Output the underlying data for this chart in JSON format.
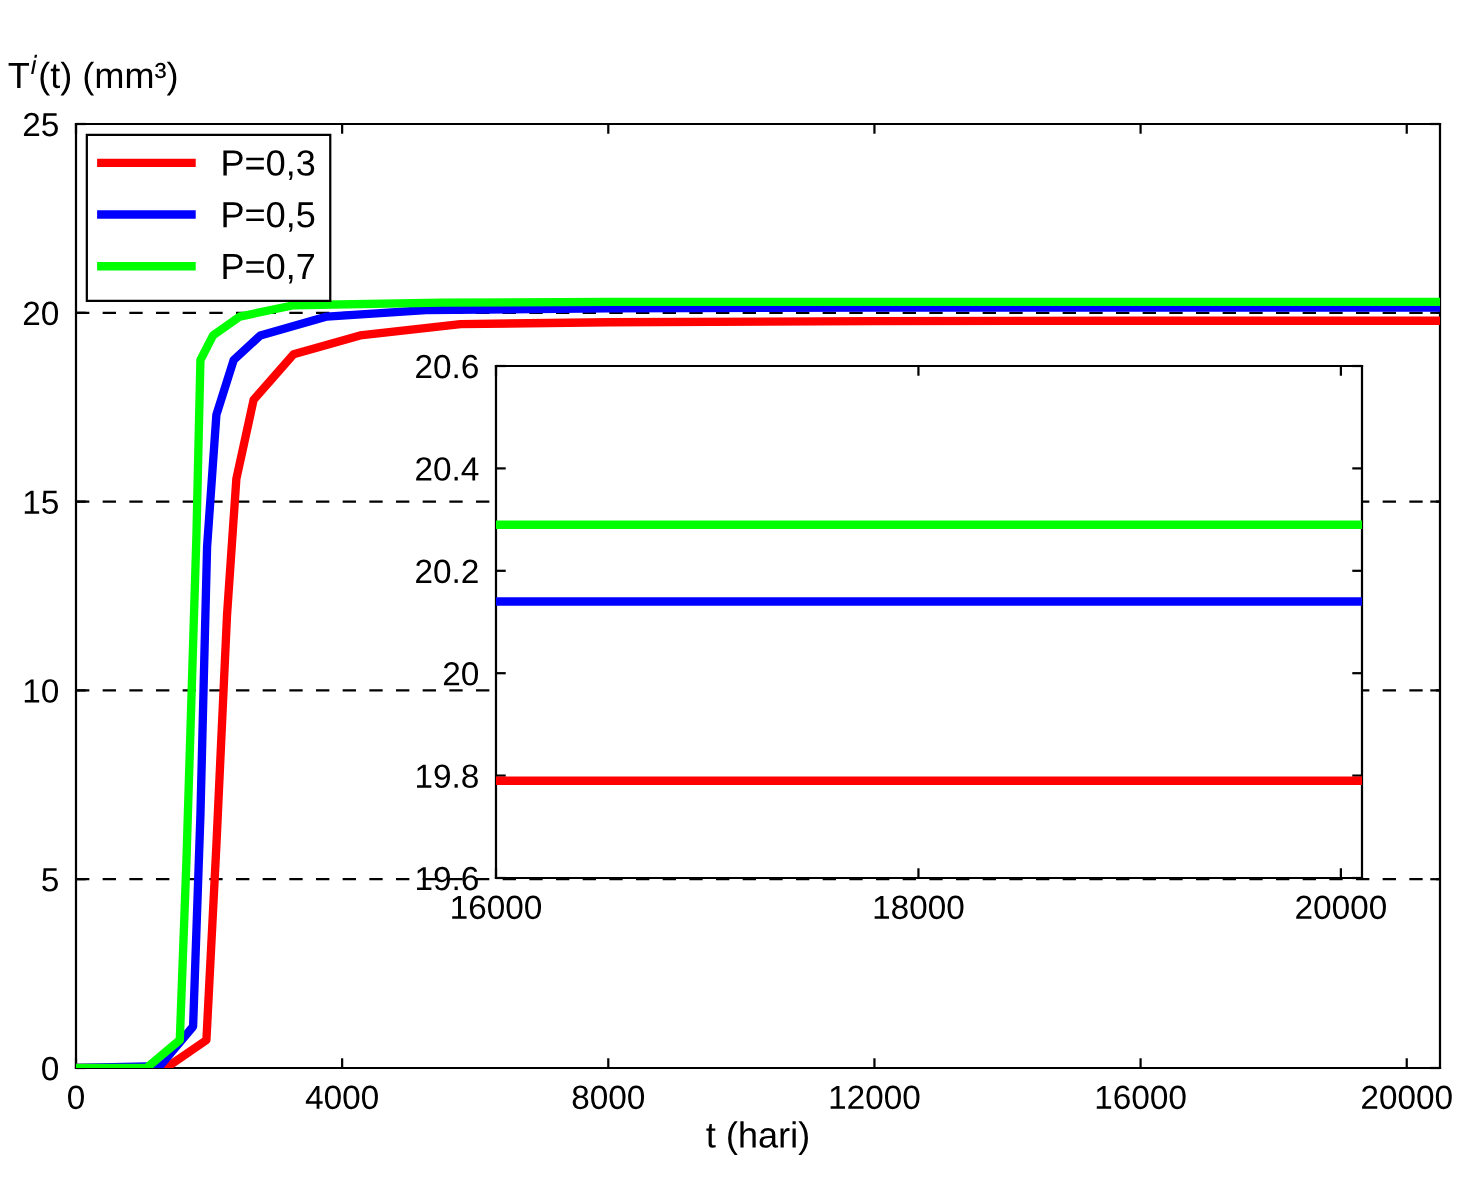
{
  "chart_data": [
    {
      "type": "line",
      "xlabel": "t (hari)",
      "ylabel": "T$^{i}$(t) (mm³)",
      "xlim": [
        0,
        20500
      ],
      "ylim": [
        0,
        25
      ],
      "xticks": [
        0,
        4000,
        8000,
        12000,
        16000,
        20000
      ],
      "yticks": [
        0,
        5,
        10,
        15,
        20,
        25
      ],
      "grid": "y",
      "legend": "top left",
      "series": [
        {
          "name": "P=0,3",
          "color": "#ff0000",
          "x": [
            0,
            1350,
            1960,
            2110,
            2270,
            2410,
            2670,
            3270,
            4270,
            5780,
            8000,
            12000,
            16000,
            20500
          ],
          "values": [
            0,
            0,
            0.74,
            5.9,
            12.0,
            15.6,
            17.7,
            18.9,
            19.4,
            19.7,
            19.75,
            19.78,
            19.79,
            19.79
          ]
        },
        {
          "name": "P=0,5",
          "color": "#0000ff",
          "x": [
            0,
            1260,
            1760,
            1870,
            1970,
            2110,
            2370,
            2770,
            3770,
            5260,
            8000,
            12000,
            16000,
            20500
          ],
          "values": [
            0,
            0.05,
            1.1,
            6.7,
            13.8,
            17.3,
            18.75,
            19.4,
            19.9,
            20.07,
            20.12,
            20.14,
            20.14,
            20.14
          ]
        },
        {
          "name": "P=0,7",
          "color": "#00ff00",
          "x": [
            0,
            1060,
            1560,
            1660,
            1810,
            1870,
            2060,
            2460,
            3270,
            5500,
            8000,
            12000,
            16000,
            20500
          ],
          "values": [
            0,
            0,
            0.74,
            5.5,
            14.1,
            18.75,
            19.4,
            19.9,
            20.2,
            20.27,
            20.29,
            20.29,
            20.29,
            20.29
          ]
        }
      ]
    },
    {
      "type": "line",
      "xlim": [
        16000,
        20100
      ],
      "ylim": [
        19.6,
        20.6
      ],
      "xticks": [
        16000,
        18000,
        20000
      ],
      "yticks": [
        19.6,
        19.8,
        20.2,
        {
          "value": 20.0,
          "label": "20"
        },
        20.4,
        20.6
      ],
      "series": [
        {
          "color": "#ff0000",
          "x": [
            16000,
            20100
          ],
          "values": [
            19.79,
            19.79
          ]
        },
        {
          "color": "#0000ff",
          "x": [
            16000,
            20100
          ],
          "values": [
            20.14,
            20.14
          ]
        },
        {
          "color": "#00ff00",
          "x": [
            16000,
            20100
          ],
          "values": [
            20.29,
            20.29
          ]
        }
      ]
    }
  ]
}
